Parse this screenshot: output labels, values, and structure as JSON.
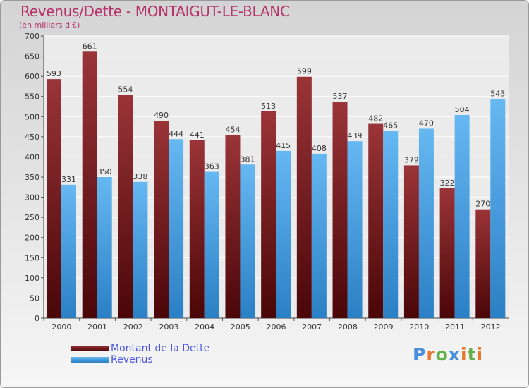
{
  "chart_data": {
    "type": "bar",
    "title": "Revenus/Dette - MONTAIGUT-LE-BLANC",
    "subtitle": "(en milliers d'€)",
    "xlabel": "",
    "ylabel": "",
    "ylim": [
      0,
      700
    ],
    "yticks": [
      0,
      50,
      100,
      150,
      200,
      250,
      300,
      350,
      400,
      450,
      500,
      550,
      600,
      650,
      700
    ],
    "grid": true,
    "categories": [
      "2000",
      "2001",
      "2002",
      "2003",
      "2004",
      "2005",
      "2006",
      "2007",
      "2008",
      "2009",
      "2010",
      "2011",
      "2012"
    ],
    "series": [
      {
        "name": "Montant de la Dette",
        "color": "#7a1a20",
        "values": [
          593,
          661,
          554,
          490,
          441,
          454,
          513,
          599,
          537,
          482,
          379,
          322,
          270
        ]
      },
      {
        "name": "Revenus",
        "color": "#4aa6e8",
        "values": [
          331,
          350,
          338,
          444,
          363,
          381,
          415,
          408,
          439,
          465,
          470,
          504,
          543
        ]
      }
    ],
    "legend": "bottom-left"
  },
  "logo": {
    "letters": [
      "P",
      "r",
      "o",
      "x",
      "i",
      "t",
      "i"
    ],
    "colors": [
      "#4a8fdc",
      "#e8772e",
      "#62b04a",
      "#4a8fdc",
      "#e8772e",
      "#62b04a",
      "#e8772e"
    ]
  }
}
